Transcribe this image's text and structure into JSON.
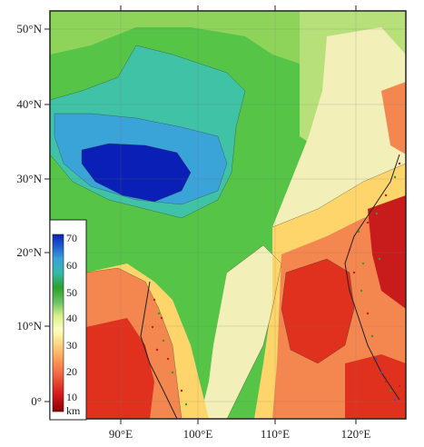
{
  "map": {
    "lat_labels": [
      "50°N",
      "40°N",
      "30°N",
      "20°N",
      "10°N",
      "0°"
    ],
    "lon_labels": [
      "90°E",
      "100°E",
      "110°E",
      "120°E"
    ],
    "extent": {
      "lon_min": 80,
      "lon_max": 126,
      "lat_min": -2,
      "lat_max": 52
    },
    "legend": {
      "values": [
        "70",
        "60",
        "50",
        "40",
        "30",
        "20",
        "10"
      ],
      "unit": "km",
      "colors": [
        "#8b0000",
        "#d7191c",
        "#f46d43",
        "#fdae61",
        "#fee08b",
        "#ffffbf",
        "#d9ef8b",
        "#66c164",
        "#2ca02c",
        "#35b9a6",
        "#3aa3d8",
        "#1f5fd0",
        "#0a1fb5"
      ]
    },
    "colors": {
      "deep_blue": "#0a1fb5",
      "blue": "#1f5fd0",
      "cyan": "#35b9a6",
      "green": "#3fbf3f",
      "light_green": "#a6d96a",
      "pale": "#f7f4c8",
      "yellow": "#fee08b",
      "orange": "#f46d43",
      "red": "#e0301e",
      "dark_red": "#b2121b"
    }
  }
}
